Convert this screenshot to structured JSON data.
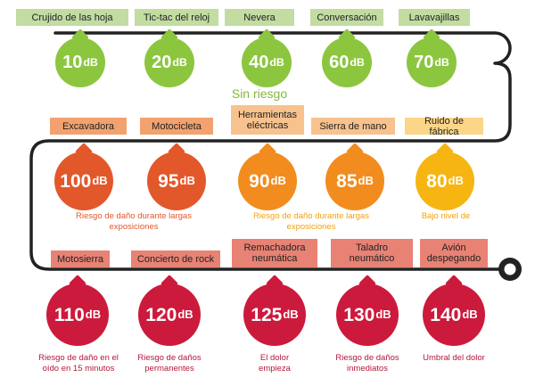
{
  "colors": {
    "track": "#222222",
    "green": "#8cc63f",
    "orange_dark": "#e2582a",
    "orange": "#f28c1e",
    "yellow": "#f6b511",
    "red": "#cc1a3c",
    "caption_orange": "#e2582a",
    "caption_yellow": "#f2a010",
    "caption_red": "#b3183a",
    "safe_text": "#86b83a"
  },
  "row1": {
    "title": "Sin riesgo",
    "items": [
      {
        "label": "Crujido de las hoja",
        "level": "10",
        "unit": "dB"
      },
      {
        "label": "Tic-tac del reloj",
        "level": "20",
        "unit": "dB"
      },
      {
        "label": "Nevera",
        "level": "40",
        "unit": "dB"
      },
      {
        "label": "Conversación",
        "level": "60",
        "unit": "dB"
      },
      {
        "label": "Lavavajillas",
        "level": "70",
        "unit": "dB"
      }
    ]
  },
  "row2": {
    "items": [
      {
        "label": "Excavadora",
        "level": "100",
        "unit": "dB"
      },
      {
        "label": "Motocicleta",
        "level": "95",
        "unit": "dB"
      },
      {
        "label": "Herramientas\neléctricas",
        "level": "90",
        "unit": "dB"
      },
      {
        "label": "Sierra de mano",
        "level": "85",
        "unit": "dB"
      },
      {
        "label": "Ruido de fábrica",
        "level": "80",
        "unit": "dB"
      }
    ],
    "captions": {
      "long_exposure_orange": "Riesgo de daño durante largas\nexposiciones",
      "long_exposure_amber": "Riesgo de daño durante largas\nexposiciones",
      "low_level": "Bajo nivel de"
    }
  },
  "row3": {
    "items": [
      {
        "label": "Motosierra",
        "level": "110",
        "unit": "dB",
        "caption": "Riesgo de daño en el\noído en 15 minutos"
      },
      {
        "label": "Concierto de rock",
        "level": "120",
        "unit": "dB",
        "caption": "Riesgo de daños\npermanentes"
      },
      {
        "label": "Remachadora\nneumática",
        "level": "125",
        "unit": "dB",
        "caption": "El dolor\nempieza"
      },
      {
        "label": "Taladro\nneumático",
        "level": "130",
        "unit": "dB",
        "caption": "Riesgo de daños\ninmediatos"
      },
      {
        "label": "Avión\ndespegando",
        "level": "140",
        "unit": "dB",
        "caption": "Umbral del dolor"
      }
    ]
  }
}
